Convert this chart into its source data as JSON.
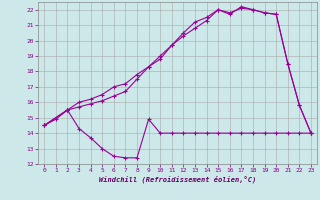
{
  "xlabel": "Windchill (Refroidissement éolien,°C)",
  "bg_color": "#cce8e8",
  "grid_color": "#aaaaaa",
  "line_color": "#990099",
  "xlim": [
    -0.5,
    23.5
  ],
  "ylim": [
    12,
    22.5
  ],
  "xticks": [
    0,
    1,
    2,
    3,
    4,
    5,
    6,
    7,
    8,
    9,
    10,
    11,
    12,
    13,
    14,
    15,
    16,
    17,
    18,
    19,
    20,
    21,
    22,
    23
  ],
  "yticks": [
    12,
    13,
    14,
    15,
    16,
    17,
    18,
    19,
    20,
    21,
    22
  ],
  "line1_x": [
    0,
    1,
    2,
    3,
    4,
    5,
    6,
    7,
    8,
    9,
    10,
    11,
    12,
    13,
    14,
    15,
    16,
    17,
    18,
    19,
    20,
    21,
    22,
    23
  ],
  "line1_y": [
    14.5,
    14.9,
    15.5,
    14.3,
    13.7,
    13.0,
    12.5,
    12.4,
    12.4,
    14.9,
    14.0,
    14.0,
    14.0,
    14.0,
    14.0,
    14.0,
    14.0,
    14.0,
    14.0,
    14.0,
    14.0,
    14.0,
    14.0,
    14.0
  ],
  "line2_x": [
    0,
    2,
    3,
    4,
    5,
    6,
    7,
    8,
    9,
    10,
    11,
    12,
    13,
    14,
    15,
    16,
    17,
    18,
    19,
    20,
    21,
    22,
    23
  ],
  "line2_y": [
    14.5,
    15.5,
    15.7,
    15.9,
    16.1,
    16.4,
    16.7,
    17.5,
    18.3,
    19.0,
    19.7,
    20.3,
    20.8,
    21.3,
    22.0,
    21.8,
    22.1,
    22.0,
    21.8,
    21.7,
    18.5,
    15.8,
    14.0
  ],
  "line3_x": [
    0,
    2,
    3,
    4,
    5,
    6,
    7,
    8,
    9,
    10,
    11,
    12,
    13,
    14,
    15,
    16,
    17,
    18,
    19,
    20,
    21,
    22,
    23
  ],
  "line3_y": [
    14.5,
    15.5,
    16.0,
    16.2,
    16.5,
    17.0,
    17.2,
    17.8,
    18.3,
    18.8,
    19.7,
    20.5,
    21.2,
    21.5,
    22.0,
    21.7,
    22.2,
    22.0,
    21.8,
    21.7,
    18.5,
    15.8,
    14.0
  ]
}
